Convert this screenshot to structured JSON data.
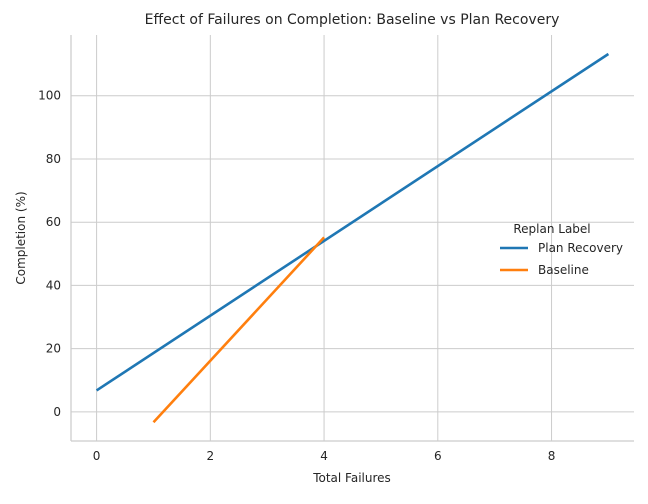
{
  "chart_data": {
    "type": "line",
    "title": "Effect of Failures on Completion: Baseline vs Plan Recovery",
    "xlabel": "Total Failures",
    "ylabel": "Completion (%)",
    "xlim": [
      -0.45,
      9.45
    ],
    "ylim": [
      -9.2,
      119.2
    ],
    "xticks": [
      0,
      2,
      4,
      6,
      8
    ],
    "yticks": [
      0,
      20,
      40,
      60,
      80,
      100
    ],
    "grid": true,
    "legend": {
      "title": "Replan Label",
      "position": "right",
      "entries": [
        "Plan Recovery",
        "Baseline"
      ]
    },
    "series": [
      {
        "name": "Plan Recovery",
        "color": "#1f77b4",
        "x": [
          0,
          9
        ],
        "y": [
          6.8,
          113.2
        ]
      },
      {
        "name": "Baseline",
        "color": "#ff7f0e",
        "x": [
          1,
          4
        ],
        "y": [
          -3.3,
          55.2
        ]
      }
    ]
  }
}
